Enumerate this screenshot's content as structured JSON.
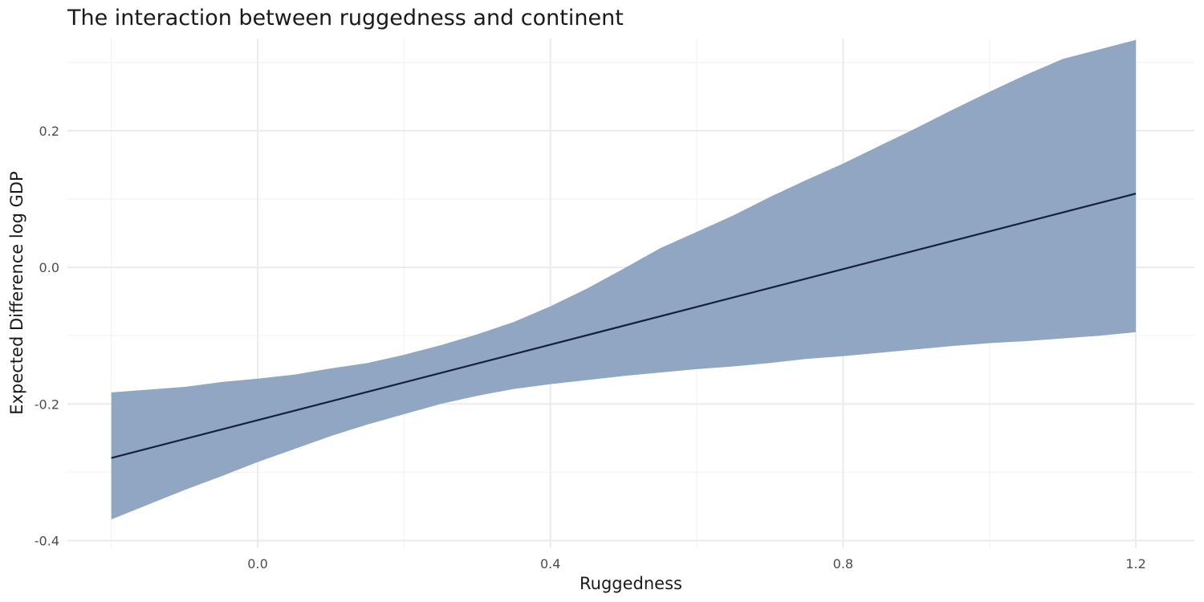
{
  "chart_data": {
    "type": "area",
    "title": "The interaction between ruggedness and continent",
    "xlabel": "Ruggedness",
    "ylabel": "Expected Difference log GDP",
    "xlim": [
      -0.26,
      1.28
    ],
    "ylim": [
      -0.41,
      0.335
    ],
    "x_ticks": [
      0.0,
      0.4,
      0.8,
      1.2
    ],
    "x_tick_labels": [
      "0.0",
      "0.4",
      "0.8",
      "1.2"
    ],
    "y_ticks": [
      -0.4,
      -0.2,
      0.0,
      0.2
    ],
    "y_tick_labels": [
      "-0.4",
      "-0.2",
      "0.0",
      "0.2"
    ],
    "grid": true,
    "colors": {
      "band": "#8ea4c2",
      "line": "#14213d"
    },
    "series": [
      {
        "type": "ribbon",
        "x": [
          -0.2,
          -0.1,
          -0.05,
          0.0,
          0.05,
          0.1,
          0.15,
          0.2,
          0.25,
          0.3,
          0.35,
          0.4,
          0.45,
          0.5,
          0.55,
          0.6,
          0.65,
          0.7,
          0.75,
          0.8,
          0.85,
          0.9,
          0.95,
          1.0,
          1.05,
          1.1,
          1.15,
          1.2
        ],
        "lower": [
          -0.369,
          -0.326,
          -0.306,
          -0.285,
          -0.266,
          -0.247,
          -0.23,
          -0.215,
          -0.2,
          -0.188,
          -0.178,
          -0.171,
          -0.165,
          -0.159,
          -0.154,
          -0.149,
          -0.145,
          -0.14,
          -0.134,
          -0.13,
          -0.125,
          -0.12,
          -0.115,
          -0.111,
          -0.108,
          -0.104,
          -0.1,
          -0.095
        ],
        "upper": [
          -0.183,
          -0.175,
          -0.168,
          -0.163,
          -0.157,
          -0.148,
          -0.14,
          -0.128,
          -0.114,
          -0.098,
          -0.08,
          -0.057,
          -0.031,
          -0.002,
          0.028,
          0.052,
          0.076,
          0.103,
          0.128,
          0.152,
          0.178,
          0.204,
          0.231,
          0.257,
          0.282,
          0.305,
          0.319,
          0.333
        ]
      },
      {
        "type": "line",
        "x": [
          -0.2,
          1.2
        ],
        "y": [
          -0.279,
          0.108
        ]
      }
    ]
  }
}
